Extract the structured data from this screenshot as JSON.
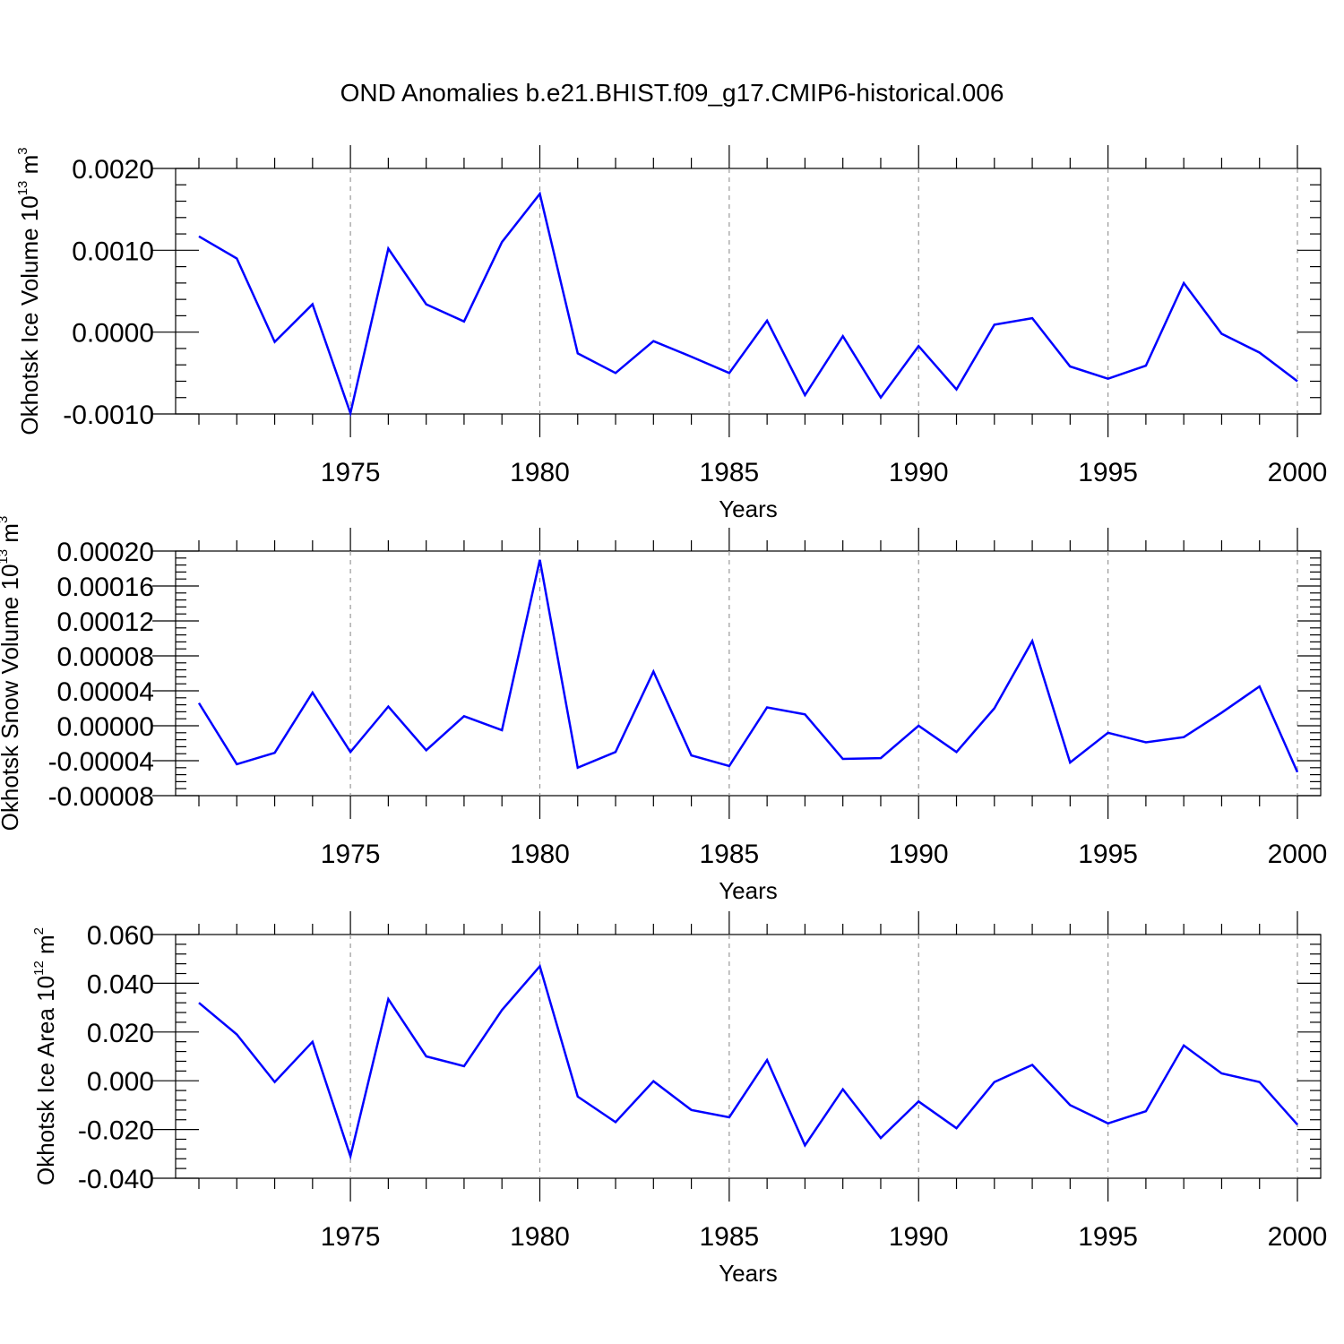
{
  "figure": {
    "title": "OND Anomalies b.e21.BHIST.f09_g17.CMIP6-historical.006"
  },
  "chart_data": [
    {
      "type": "line",
      "title": "",
      "xlabel": "Years",
      "ylabel": {
        "text": "Okhotsk Ice Volume 10",
        "exp": "13",
        "unit": "m",
        "unit_exp": "3"
      },
      "xlim": [
        1971,
        2000
      ],
      "ylim": [
        -0.001,
        0.002
      ],
      "y_ticks": [
        {
          "v": -0.001,
          "label": "-0.0010"
        },
        {
          "v": 0.0,
          "label": "0.0000"
        },
        {
          "v": 0.001,
          "label": "0.0010"
        },
        {
          "v": 0.002,
          "label": "0.0020"
        }
      ],
      "x_ticks": [
        {
          "v": 1975,
          "label": "1975"
        },
        {
          "v": 1980,
          "label": "1980"
        },
        {
          "v": 1985,
          "label": "1985"
        },
        {
          "v": 1990,
          "label": "1990"
        },
        {
          "v": 1995,
          "label": "1995"
        },
        {
          "v": 2000,
          "label": "2000"
        }
      ],
      "grid": "vertical dashed at major x ticks",
      "line_color": "#0000ff",
      "x": [
        1971,
        1972,
        1973,
        1974,
        1975,
        1976,
        1977,
        1978,
        1979,
        1980,
        1981,
        1982,
        1983,
        1984,
        1985,
        1986,
        1987,
        1988,
        1989,
        1990,
        1991,
        1992,
        1993,
        1994,
        1995,
        1996,
        1997,
        1998,
        1999,
        2000
      ],
      "series": [
        {
          "values": [
            0.00117,
            0.0009,
            -0.00012,
            0.00034,
            -0.00099,
            0.00102,
            0.00034,
            0.00013,
            0.0011,
            0.00169,
            -0.00026,
            -0.0005,
            -0.00011,
            -0.0003,
            -0.0005,
            0.00014,
            -0.00077,
            -5e-05,
            -0.0008,
            -0.00017,
            -0.0007,
            9e-05,
            0.00017,
            -0.00042,
            -0.00057,
            -0.00041,
            0.0006,
            -2e-05,
            -0.00025,
            -0.0006
          ]
        }
      ]
    },
    {
      "type": "line",
      "title": "",
      "xlabel": "Years",
      "ylabel": {
        "text": "Okhotsk Snow Volume 10",
        "exp": "13",
        "unit": "m",
        "unit_exp": "3"
      },
      "xlim": [
        1971,
        2000
      ],
      "ylim": [
        -8e-05,
        0.0002
      ],
      "y_ticks": [
        {
          "v": -8e-05,
          "label": "-0.00008"
        },
        {
          "v": -4e-05,
          "label": "-0.00004"
        },
        {
          "v": 0.0,
          "label": "0.00000"
        },
        {
          "v": 4e-05,
          "label": "0.00004"
        },
        {
          "v": 8e-05,
          "label": "0.00008"
        },
        {
          "v": 0.00012,
          "label": "0.00012"
        },
        {
          "v": 0.00016,
          "label": "0.00016"
        },
        {
          "v": 0.0002,
          "label": "0.00020"
        }
      ],
      "x_ticks": [
        {
          "v": 1975,
          "label": "1975"
        },
        {
          "v": 1980,
          "label": "1980"
        },
        {
          "v": 1985,
          "label": "1985"
        },
        {
          "v": 1990,
          "label": "1990"
        },
        {
          "v": 1995,
          "label": "1995"
        },
        {
          "v": 2000,
          "label": "2000"
        }
      ],
      "grid": "vertical dashed at major x ticks",
      "line_color": "#0000ff",
      "x": [
        1971,
        1972,
        1973,
        1974,
        1975,
        1976,
        1977,
        1978,
        1979,
        1980,
        1981,
        1982,
        1983,
        1984,
        1985,
        1986,
        1987,
        1988,
        1989,
        1990,
        1991,
        1992,
        1993,
        1994,
        1995,
        1996,
        1997,
        1998,
        1999,
        2000
      ],
      "series": [
        {
          "values": [
            2.6e-05,
            -4.4e-05,
            -3.1e-05,
            3.8e-05,
            -3e-05,
            2.2e-05,
            -2.8e-05,
            1.1e-05,
            -5e-06,
            0.00019,
            -4.8e-05,
            -3e-05,
            6.2e-05,
            -3.4e-05,
            -4.6e-05,
            2.1e-05,
            1.3e-05,
            -3.8e-05,
            -3.7e-05,
            0.0,
            -3e-05,
            2e-05,
            9.7e-05,
            -4.2e-05,
            -8e-06,
            -1.9e-05,
            -1.3e-05,
            1.5e-05,
            4.5e-05,
            -5.3e-05
          ]
        }
      ]
    },
    {
      "type": "line",
      "title": "",
      "xlabel": "Years",
      "ylabel": {
        "text": "Okhotsk Ice Area 10",
        "exp": "12",
        "unit": "m",
        "unit_exp": "2"
      },
      "xlim": [
        1971,
        2000
      ],
      "ylim": [
        -0.04,
        0.06
      ],
      "y_ticks": [
        {
          "v": -0.04,
          "label": "-0.040"
        },
        {
          "v": -0.02,
          "label": "-0.020"
        },
        {
          "v": 0.0,
          "label": "0.000"
        },
        {
          "v": 0.02,
          "label": "0.020"
        },
        {
          "v": 0.04,
          "label": "0.040"
        },
        {
          "v": 0.06,
          "label": "0.060"
        }
      ],
      "x_ticks": [
        {
          "v": 1975,
          "label": "1975"
        },
        {
          "v": 1980,
          "label": "1980"
        },
        {
          "v": 1985,
          "label": "1985"
        },
        {
          "v": 1990,
          "label": "1990"
        },
        {
          "v": 1995,
          "label": "1995"
        },
        {
          "v": 2000,
          "label": "2000"
        }
      ],
      "grid": "vertical dashed at major x ticks",
      "line_color": "#0000ff",
      "x": [
        1971,
        1972,
        1973,
        1974,
        1975,
        1976,
        1977,
        1978,
        1979,
        1980,
        1981,
        1982,
        1983,
        1984,
        1985,
        1986,
        1987,
        1988,
        1989,
        1990,
        1991,
        1992,
        1993,
        1994,
        1995,
        1996,
        1997,
        1998,
        1999,
        2000
      ],
      "series": [
        {
          "values": [
            0.032,
            0.019,
            -0.0005,
            0.016,
            -0.031,
            0.0335,
            0.01,
            0.006,
            0.029,
            0.047,
            -0.0065,
            -0.017,
            -0.0002,
            -0.012,
            -0.015,
            0.0085,
            -0.0265,
            -0.0035,
            -0.0235,
            -0.0085,
            -0.0195,
            -0.0005,
            0.0065,
            -0.01,
            -0.0175,
            -0.0125,
            0.0145,
            0.003,
            -0.0005,
            -0.018
          ]
        }
      ]
    }
  ]
}
